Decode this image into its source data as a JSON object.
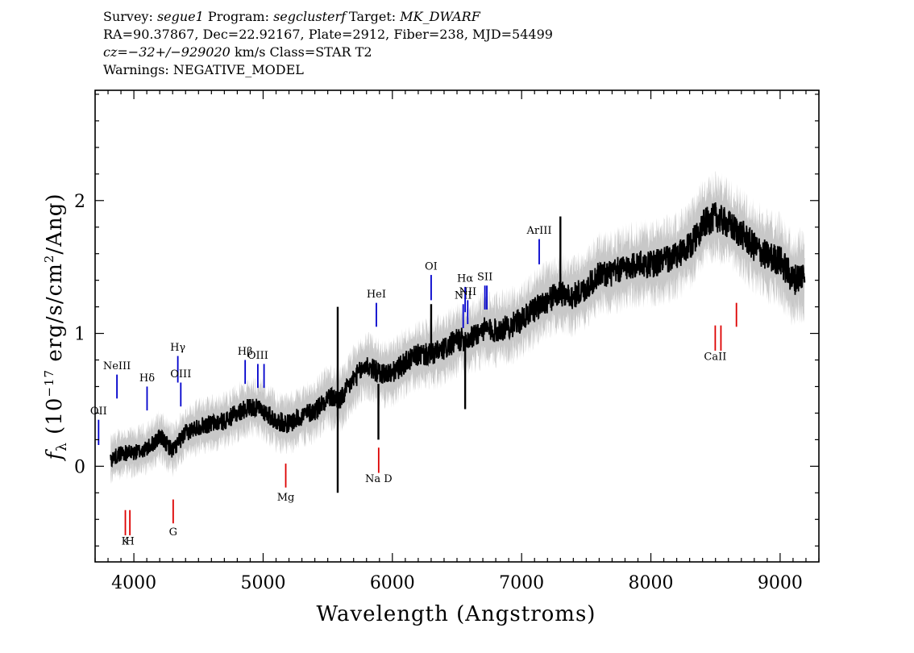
{
  "header": {
    "survey_label": "Survey:",
    "survey": "segue1",
    "program_label": "Program:",
    "program": "segclusterf",
    "target_label": "Target:",
    "target": "MK_DWARF",
    "line2": "RA=90.37867, Dec=22.92167, Plate=2912, Fiber=238, MJD=54499",
    "cz_prefix": "cz=",
    "cz_value": "−32+/−929020",
    "cz_suffix": "km/s Class=STAR T2",
    "warnings": "Warnings: NEGATIVE_MODEL"
  },
  "chart_data": {
    "type": "line",
    "xlabel": "Wavelength (Angstroms)",
    "ylabel": "fλ (10⁻¹⁷ erg/s/cm²/Ang)",
    "xlim": [
      3700,
      9300
    ],
    "ylim": [
      -0.72,
      2.83
    ],
    "x_ticks": [
      4000,
      5000,
      6000,
      7000,
      8000,
      9000
    ],
    "y_ticks": [
      0,
      1,
      2
    ],
    "grid": false,
    "colors": {
      "flux": "#000000",
      "error": "#c8c8c8",
      "emission": "#0000cc",
      "absorption": "#dd0000"
    },
    "series": [
      {
        "name": "flux",
        "x": [
          3820,
          3900,
          4000,
          4100,
          4200,
          4300,
          4400,
          4500,
          4600,
          4700,
          4800,
          4900,
          5000,
          5100,
          5200,
          5300,
          5400,
          5500,
          5600,
          5700,
          5800,
          5900,
          6000,
          6100,
          6200,
          6300,
          6400,
          6500,
          6600,
          6700,
          6800,
          6900,
          7000,
          7100,
          7200,
          7300,
          7400,
          7500,
          7600,
          7700,
          7800,
          7900,
          8000,
          8100,
          8200,
          8300,
          8400,
          8500,
          8600,
          8700,
          8800,
          8900,
          9000,
          9100,
          9190
        ],
        "y": [
          0.05,
          0.1,
          0.1,
          0.13,
          0.22,
          0.12,
          0.25,
          0.3,
          0.32,
          0.34,
          0.4,
          0.45,
          0.42,
          0.34,
          0.32,
          0.38,
          0.42,
          0.52,
          0.5,
          0.66,
          0.76,
          0.7,
          0.7,
          0.78,
          0.84,
          0.84,
          0.88,
          0.95,
          0.96,
          1.03,
          1.02,
          1.05,
          1.1,
          1.18,
          1.25,
          1.3,
          1.28,
          1.34,
          1.45,
          1.45,
          1.5,
          1.52,
          1.52,
          1.55,
          1.58,
          1.65,
          1.82,
          1.88,
          1.82,
          1.75,
          1.65,
          1.58,
          1.55,
          1.4,
          1.45
        ]
      }
    ],
    "spikes": [
      {
        "x": 5577,
        "y1": -0.2,
        "y2": 1.2
      },
      {
        "x": 6300,
        "y1": 0.8,
        "y2": 1.22
      },
      {
        "x": 6563,
        "y1": 0.43,
        "y2": 0.98
      },
      {
        "x": 7300,
        "y1": 1.25,
        "y2": 1.88
      },
      {
        "x": 5892,
        "y1": 0.2,
        "y2": 0.62
      }
    ],
    "emission_lines": [
      {
        "label": "OII",
        "x": 3727,
        "y1": 0.16,
        "y2": 0.35,
        "ly": 0.39
      },
      {
        "label": "NeIII",
        "x": 3869,
        "y1": 0.51,
        "y2": 0.69,
        "ly": 0.73
      },
      {
        "label": "Hδ",
        "x": 4102,
        "y1": 0.42,
        "y2": 0.6,
        "ly": 0.64
      },
      {
        "label": "Hγ",
        "x": 4340,
        "y1": 0.63,
        "y2": 0.83,
        "ly": 0.87
      },
      {
        "label": "OIII",
        "x": 4363,
        "y1": 0.45,
        "y2": 0.63,
        "ly": 0.67
      },
      {
        "label": "Hβ",
        "x": 4861,
        "y1": 0.62,
        "y2": 0.8,
        "ly": 0.84
      },
      {
        "label": "OIII",
        "x": 4959,
        "y1": 0.59,
        "y2": 0.77,
        "ly": 0.81
      },
      {
        "label": "OIII",
        "x": 5007,
        "y1": 0.59,
        "y2": 0.77,
        "ly": 0.81
      },
      {
        "label": "HeI",
        "x": 5876,
        "y1": 1.05,
        "y2": 1.23,
        "ly": 1.27
      },
      {
        "label": "OI",
        "x": 6300,
        "y1": 1.25,
        "y2": 1.44,
        "ly": 1.48
      },
      {
        "label": "NII",
        "x": 6548,
        "y1": 1.04,
        "y2": 1.22,
        "ly": 1.26
      },
      {
        "label": "Hα",
        "x": 6563,
        "y1": 1.16,
        "y2": 1.35,
        "ly": 1.39
      },
      {
        "label": "NII",
        "x": 6583,
        "y1": 1.07,
        "y2": 1.25,
        "ly": 1.29
      },
      {
        "label": "SII",
        "x": 6716,
        "y1": 1.18,
        "y2": 1.36,
        "ly": 1.4
      },
      {
        "label": "SII",
        "x": 6731,
        "y1": 1.18,
        "y2": 1.36,
        "ly": 1.4
      },
      {
        "label": "ArIII",
        "x": 7136,
        "y1": 1.52,
        "y2": 1.71,
        "ly": 1.75
      }
    ],
    "absorption_lines": [
      {
        "label": "K",
        "x": 3934,
        "y1": -0.52,
        "y2": -0.33,
        "ly": -0.59
      },
      {
        "label": "H",
        "x": 3969,
        "y1": -0.52,
        "y2": -0.33,
        "ly": -0.59
      },
      {
        "label": "G",
        "x": 4304,
        "y1": -0.43,
        "y2": -0.25,
        "ly": -0.52
      },
      {
        "label": "Mg",
        "x": 5175,
        "y1": -0.16,
        "y2": 0.02,
        "ly": -0.26
      },
      {
        "label": "Na D",
        "x": 5894,
        "y1": 0.14,
        "y2": -0.05,
        "ly": -0.12
      },
      {
        "label": "CaII",
        "x": 8498,
        "y1": 0.87,
        "y2": 1.06,
        "ly": 0.8
      },
      {
        "label": "CaII",
        "x": 8542,
        "y1": 0.87,
        "y2": 1.06,
        "ly": 0.8
      },
      {
        "label": "CaII",
        "x": 8662,
        "y1": 1.05,
        "y2": 1.23,
        "ly": 0.8
      }
    ]
  }
}
